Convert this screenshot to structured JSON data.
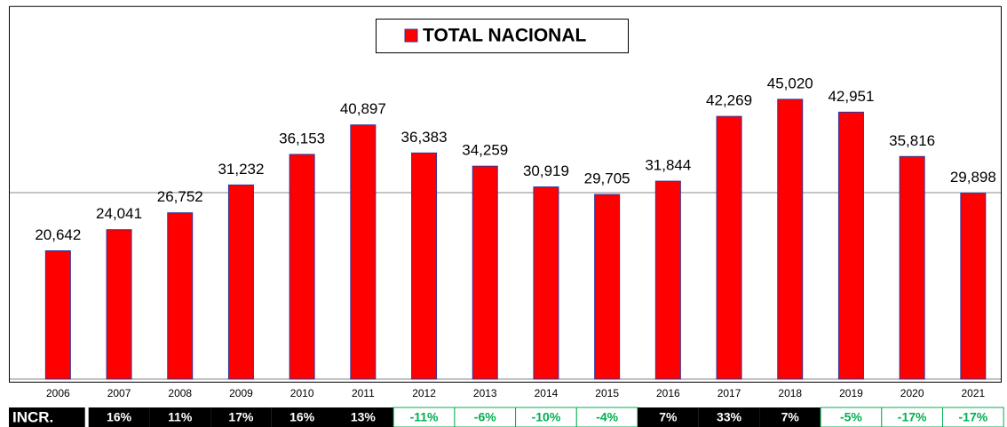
{
  "chart_data": {
    "type": "bar",
    "legend": "TOTAL NACIONAL",
    "categories": [
      "2006",
      "2007",
      "2008",
      "2009",
      "2010",
      "2011",
      "2012",
      "2013",
      "2014",
      "2015",
      "2016",
      "2017",
      "2018",
      "2019",
      "2020",
      "2021"
    ],
    "values": [
      20642,
      24041,
      26752,
      31232,
      36153,
      40897,
      36383,
      34259,
      30919,
      29705,
      31844,
      42269,
      45020,
      42951,
      35816,
      29898
    ],
    "value_labels": [
      "20,642",
      "24,041",
      "26,752",
      "31,232",
      "36,153",
      "40,897",
      "36,383",
      "34,259",
      "30,919",
      "29,705",
      "31,844",
      "42,269",
      "45,020",
      "42,951",
      "35,816",
      "29,898"
    ],
    "color": "#ff0000",
    "ylim": [
      0,
      60000
    ],
    "yticks": [
      0,
      30000,
      60000
    ],
    "grid": true,
    "increments": {
      "label": "INCR.",
      "values": [
        16,
        11,
        17,
        16,
        13,
        -11,
        -6,
        -10,
        -4,
        7,
        33,
        7,
        -5,
        -17,
        -17
      ],
      "value_labels": [
        "16%",
        "11%",
        "17%",
        "16%",
        "13%",
        "-11%",
        "-6%",
        "-10%",
        "-4%",
        "7%",
        "33%",
        "7%",
        "-5%",
        "-17%",
        "-17%"
      ],
      "positive_color": "#000000",
      "negative_color": "#00b050"
    }
  }
}
